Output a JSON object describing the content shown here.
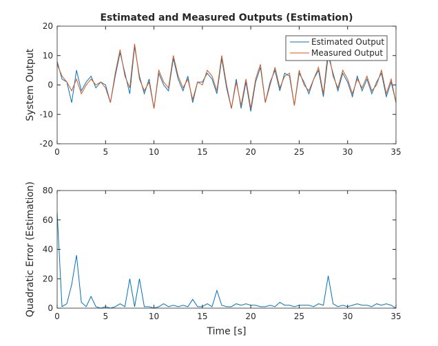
{
  "chart_data": [
    {
      "type": "line",
      "title": "Estimated and Measured Outputs (Estimation)",
      "ylabel": "System Output",
      "x": [
        0,
        0.5,
        1,
        1.5,
        2,
        2.5,
        3,
        3.5,
        4,
        4.5,
        5,
        5.5,
        6,
        6.5,
        7,
        7.5,
        8,
        8.5,
        9,
        9.5,
        10,
        10.5,
        11,
        11.5,
        12,
        12.5,
        13,
        13.5,
        14,
        14.5,
        15,
        15.5,
        16,
        16.5,
        17,
        17.5,
        18,
        18.5,
        19,
        19.5,
        20,
        20.5,
        21,
        21.5,
        22,
        22.5,
        23,
        23.5,
        24,
        24.5,
        25,
        25.5,
        26,
        26.5,
        27,
        27.5,
        28,
        28.5,
        29,
        29.5,
        30,
        30.5,
        31,
        31.5,
        32,
        32.5,
        33,
        33.5,
        34,
        34.5,
        35
      ],
      "series": [
        {
          "name": "Estimated Output",
          "color": "#0072bd",
          "values": [
            8,
            2,
            1,
            -6,
            5,
            -2,
            1,
            3,
            -1,
            1,
            0,
            -6,
            3,
            11,
            4,
            -3,
            13,
            3,
            -3,
            2,
            -8,
            4,
            0,
            -2,
            9,
            2,
            -2,
            3,
            -6,
            1,
            1,
            4,
            2,
            -3,
            9,
            -1,
            -8,
            2,
            -8,
            1,
            -9,
            1,
            6,
            -6,
            1,
            5,
            -2,
            4,
            3,
            -7,
            4,
            1,
            -3,
            2,
            5,
            -4,
            10,
            4,
            -2,
            4,
            1,
            -4,
            3,
            -2,
            2,
            -3,
            1,
            4,
            -4,
            1,
            -6
          ]
        },
        {
          "name": "Measured Output",
          "color": "#d95319",
          "values": [
            7,
            3,
            1,
            -2,
            2,
            -3,
            0,
            2,
            0,
            1,
            -1,
            -6,
            4,
            12,
            3,
            -1,
            14,
            2,
            -2,
            1,
            -8,
            5,
            1,
            -1,
            10,
            3,
            -1,
            2,
            -5,
            1,
            0,
            5,
            3,
            -2,
            10,
            0,
            -8,
            1,
            -7,
            2,
            -8,
            2,
            7,
            -6,
            0,
            6,
            -1,
            3,
            4,
            -7,
            5,
            0,
            -2,
            2,
            6,
            -3,
            12,
            3,
            -1,
            5,
            2,
            -3,
            2,
            -1,
            3,
            -2,
            0,
            5,
            -3,
            2,
            -6
          ]
        }
      ],
      "xlim": [
        0,
        35
      ],
      "xticks": [
        0,
        5,
        10,
        15,
        20,
        25,
        30,
        35
      ],
      "ylim": [
        -20,
        20
      ],
      "yticks": [
        -20,
        -10,
        0,
        10,
        20
      ],
      "legend": "northeast",
      "grid": false
    },
    {
      "type": "line",
      "xlabel": "Time [s]",
      "ylabel": "Quadratic Error (Estimation)",
      "x": [
        0,
        0.5,
        1,
        1.5,
        2,
        2.5,
        3,
        3.5,
        4,
        4.5,
        5,
        5.5,
        6,
        6.5,
        7,
        7.5,
        8,
        8.5,
        9,
        9.5,
        10,
        10.5,
        11,
        11.5,
        12,
        12.5,
        13,
        13.5,
        14,
        14.5,
        15,
        15.5,
        16,
        16.5,
        17,
        17.5,
        18,
        18.5,
        19,
        19.5,
        20,
        20.5,
        21,
        21.5,
        22,
        22.5,
        23,
        23.5,
        24,
        24.5,
        25,
        25.5,
        26,
        26.5,
        27,
        27.5,
        28,
        28.5,
        29,
        29.5,
        30,
        30.5,
        31,
        31.5,
        32,
        32.5,
        33,
        33.5,
        34,
        34.5,
        35
      ],
      "series": [
        {
          "name": "Quadratic Error",
          "color": "#0072bd",
          "values": [
            65,
            1,
            3,
            16,
            36,
            4,
            1,
            8,
            1,
            0,
            1,
            0,
            1,
            3,
            1,
            20,
            1,
            20,
            1,
            1,
            0,
            1,
            3,
            1,
            2,
            1,
            2,
            1,
            6,
            1,
            1,
            3,
            1,
            12,
            2,
            1,
            1,
            3,
            2,
            3,
            2,
            2,
            1,
            1,
            2,
            1,
            4,
            2,
            2,
            1,
            2,
            2,
            2,
            1,
            3,
            2,
            22,
            3,
            1,
            2,
            1,
            2,
            3,
            2,
            2,
            1,
            3,
            2,
            3,
            2,
            0
          ]
        }
      ],
      "xlim": [
        0,
        35
      ],
      "xticks": [
        0,
        5,
        10,
        15,
        20,
        25,
        30,
        35
      ],
      "ylim": [
        0,
        80
      ],
      "yticks": [
        0,
        20,
        40,
        60,
        80
      ],
      "grid": false
    }
  ]
}
